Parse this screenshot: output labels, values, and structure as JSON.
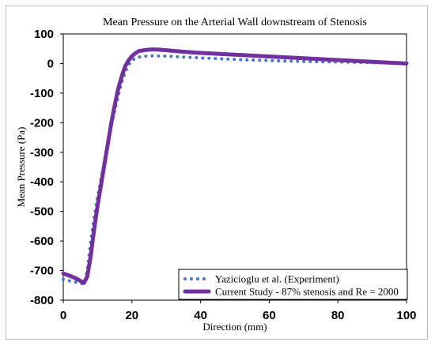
{
  "chart_data": {
    "type": "line",
    "title": "Mean Pressure on the Arterial Wall downstream of Stenosis",
    "xlabel": "Direction (mm)",
    "ylabel": "Mean Pressure (Pa)",
    "xlim": [
      0,
      100
    ],
    "ylim": [
      -800,
      100
    ],
    "xticks": [
      "0",
      "20",
      "40",
      "60",
      "80",
      "100"
    ],
    "yticks": [
      "100",
      "0",
      "-100",
      "-200",
      "-300",
      "-400",
      "-500",
      "-600",
      "-700",
      "-800"
    ],
    "grid": false,
    "legend_position": "bottom-right",
    "series": [
      {
        "name": "Yazicioglu et al. (Experiment)",
        "style": "dotted",
        "color": "#4472c4",
        "x": [
          0,
          2,
          4,
          6,
          7,
          8,
          9,
          10,
          11,
          12,
          13,
          14,
          15,
          16,
          17,
          18,
          19,
          20,
          21,
          22,
          24,
          26,
          30,
          35,
          40,
          50,
          60,
          70,
          80,
          90,
          100
        ],
        "y": [
          -730,
          -735,
          -740,
          -745,
          -700,
          -600,
          -520,
          -450,
          -390,
          -330,
          -270,
          -210,
          -160,
          -110,
          -65,
          -30,
          -5,
          10,
          18,
          22,
          25,
          26,
          25,
          22,
          19,
          14,
          10,
          7,
          5,
          3,
          0
        ]
      },
      {
        "name": "Current Study - 87% stenosis and Re = 2000",
        "style": "solid",
        "color": "#7030a0",
        "x": [
          0,
          2,
          4,
          5,
          6,
          7,
          8,
          9,
          10,
          11,
          12,
          13,
          14,
          15,
          16,
          17,
          18,
          19,
          20,
          21,
          22,
          24,
          26,
          28,
          30,
          35,
          40,
          50,
          60,
          70,
          80,
          90,
          100
        ],
        "y": [
          -710,
          -718,
          -728,
          -735,
          -742,
          -720,
          -650,
          -560,
          -480,
          -410,
          -340,
          -270,
          -200,
          -140,
          -85,
          -45,
          -10,
          10,
          25,
          35,
          42,
          46,
          48,
          47,
          45,
          40,
          36,
          30,
          24,
          18,
          12,
          6,
          0
        ]
      }
    ]
  }
}
